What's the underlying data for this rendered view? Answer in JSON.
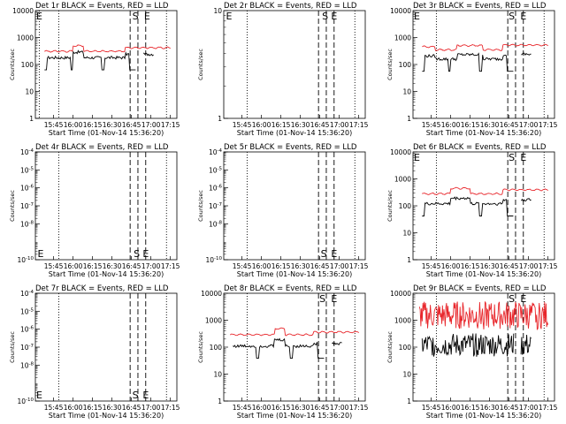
{
  "chart_data": [
    {
      "type": "line",
      "title": "Det 1r BLACK = Events, RED = LLD",
      "ylabel": "Counts/sec",
      "xlabel": "Start Time (01-Nov-14 15:36:20)",
      "x_tick_labels": [
        "15:45",
        "16:00",
        "16:15",
        "16:30",
        "16:45",
        "17:00",
        "17:15"
      ],
      "yscale": "log",
      "ylim": [
        1,
        10000
      ],
      "y_tick_labels": [
        "1",
        "10",
        "100",
        "1000",
        "10000"
      ],
      "markers": [
        {
          "label": "E",
          "time": "15:31"
        },
        {
          "label": "S",
          "time": "16:45"
        },
        {
          "label": "E",
          "time": "16:54"
        }
      ],
      "dotted_lines": [
        "15:34",
        "15:49",
        "17:12"
      ],
      "dashed_lines": [
        "16:44",
        "16:50",
        "16:56"
      ],
      "series": [
        {
          "name": "Events",
          "color": "#000000",
          "style": "seg",
          "t0": "15:38",
          "t1": "17:02",
          "n": 110,
          "base": 180,
          "shape": "one",
          "amp": 40,
          "dips": [
            [
              "15:38",
              "15:40"
            ],
            [
              "15:58",
              "16:00"
            ],
            [
              "16:22",
              "16:24"
            ],
            [
              "16:43",
              "16:51"
            ]
          ],
          "gaps": [
            [
              "16:49",
              "16:54"
            ]
          ]
        },
        {
          "name": "LLD",
          "color": "#e8262b",
          "style": "smooth",
          "t0": "15:38",
          "t1": "17:15",
          "n": 140,
          "base": 310,
          "shape": "one"
        }
      ]
    },
    {
      "type": "line",
      "title": "Det 2r BLACK = Events, RED = LLD",
      "ylabel": "Counts/sec",
      "xlabel": "Start Time (01-Nov-14 15:36:20)",
      "x_tick_labels": [
        "15:45",
        "16:00",
        "16:15",
        "16:30",
        "16:45",
        "17:00",
        "17:15"
      ],
      "yscale": "log",
      "ylim": [
        1,
        10
      ],
      "y_tick_labels": [
        "1",
        "10"
      ],
      "markers": [
        {
          "label": "E",
          "time": "15:32",
          "pos": "top"
        },
        {
          "label": "S",
          "time": "16:46",
          "pos": "top"
        },
        {
          "label": "E",
          "time": "16:53",
          "pos": "top"
        }
      ],
      "dotted_lines": [
        "15:49",
        "17:12"
      ],
      "dashed_lines": [
        "16:44",
        "16:50",
        "16:56"
      ],
      "series": []
    },
    {
      "type": "line",
      "title": "Det 3r BLACK = Events, RED = LLD",
      "ylabel": "Counts/sec",
      "xlabel": "Start Time (01-Nov-14 15:36:20)",
      "x_tick_labels": [
        "15:45",
        "16:00",
        "16:15",
        "16:30",
        "16:45",
        "17:00",
        "17:15"
      ],
      "yscale": "log",
      "ylim": [
        1,
        10000
      ],
      "y_tick_labels": [
        "1",
        "10",
        "100",
        "1000",
        "10000"
      ],
      "markers": [
        {
          "label": "E",
          "time": "15:31",
          "pos": "top"
        },
        {
          "label": "S",
          "time": "16:44",
          "pos": "top"
        },
        {
          "label": "E",
          "time": "16:53",
          "pos": "top"
        }
      ],
      "dotted_lines": [
        "15:49",
        "17:12"
      ],
      "dashed_lines": [
        "16:44",
        "16:50",
        "16:56"
      ],
      "series": [
        {
          "name": "Events",
          "color": "#000000",
          "style": "seg",
          "t0": "15:38",
          "t1": "17:02",
          "n": 110,
          "base": 160,
          "shape": "three",
          "amp": 40,
          "dips": [
            [
              "15:38",
              "15:40"
            ],
            [
              "15:58",
              "16:00"
            ],
            [
              "16:22",
              "16:24"
            ],
            [
              "16:43",
              "16:51"
            ]
          ],
          "gaps": [
            [
              "16:49",
              "16:54"
            ]
          ]
        },
        {
          "name": "LLD",
          "color": "#e8262b",
          "style": "smooth",
          "t0": "15:38",
          "t1": "17:15",
          "n": 140,
          "base": 350,
          "shape": "three"
        }
      ]
    },
    {
      "type": "line",
      "title": "Det 4r BLACK = Events, RED = LLD",
      "ylabel": "Counts/sec",
      "xlabel": "Start Time (01-Nov-14 15:36:20)",
      "x_tick_labels": [
        "15:45",
        "16:00",
        "16:15",
        "16:30",
        "16:45",
        "17:00",
        "17:15"
      ],
      "yscale": "log",
      "ylim": [
        1e-10,
        0.0001
      ],
      "y_tick_labels": [
        "10^-10",
        "10^-8",
        "10^-7",
        "10^-6",
        "10^-5",
        "10^-4"
      ],
      "markers": [
        {
          "label": "E",
          "time": "15:32",
          "pos": "bottom"
        },
        {
          "label": "S",
          "time": "16:46",
          "pos": "bottom"
        },
        {
          "label": "E",
          "time": "16:53",
          "pos": "bottom"
        }
      ],
      "dotted_lines": [
        "15:49",
        "17:12"
      ],
      "dashed_lines": [
        "16:44",
        "16:50",
        "16:56"
      ],
      "series": []
    },
    {
      "type": "line",
      "title": "Det 5r BLACK = Events, RED = LLD",
      "ylabel": "Counts/sec",
      "xlabel": "Start Time (01-Nov-14 15:36:20)",
      "x_tick_labels": [
        "15:45",
        "16:00",
        "16:15",
        "16:30",
        "16:45",
        "17:00",
        "17:15"
      ],
      "yscale": "log",
      "ylim": [
        1e-10,
        0.0001
      ],
      "y_tick_labels": [
        "10^-10",
        "10^-8",
        "10^-7",
        "10^-6",
        "10^-5",
        "10^-4"
      ],
      "markers": [
        {
          "label": "S",
          "time": "16:45",
          "pos": "bottom"
        },
        {
          "label": "E",
          "time": "16:53",
          "pos": "bottom"
        }
      ],
      "dotted_lines": [
        "15:49",
        "17:12"
      ],
      "dashed_lines": [
        "16:44",
        "16:50",
        "16:56"
      ],
      "series": []
    },
    {
      "type": "line",
      "title": "Det 6r BLACK = Events, RED = LLD",
      "ylabel": "Counts/sec",
      "xlabel": "Start Time (01-Nov-14 15:36:20)",
      "x_tick_labels": [
        "15:45",
        "16:00",
        "16:15",
        "16:30",
        "16:45",
        "17:00",
        "17:15"
      ],
      "yscale": "log",
      "ylim": [
        1,
        10000
      ],
      "y_tick_labels": [
        "1",
        "10",
        "100",
        "1000",
        "10000"
      ],
      "markers": [
        {
          "label": "E",
          "time": "15:31",
          "pos": "top"
        },
        {
          "label": "S",
          "time": "16:44",
          "pos": "top"
        },
        {
          "label": "E",
          "time": "16:53",
          "pos": "top"
        }
      ],
      "dotted_lines": [
        "15:49",
        "17:12"
      ],
      "dashed_lines": [
        "16:44",
        "16:50",
        "16:56"
      ],
      "series": [
        {
          "name": "Events",
          "color": "#000000",
          "style": "seg",
          "t0": "15:38",
          "t1": "17:02",
          "n": 110,
          "base": 120,
          "shape": "six",
          "amp": 40,
          "dips": [
            [
              "15:38",
              "15:40"
            ],
            [
              "16:22",
              "16:24"
            ],
            [
              "16:43",
              "16:51"
            ]
          ],
          "gaps": [
            [
              "16:49",
              "16:54"
            ]
          ]
        },
        {
          "name": "LLD",
          "color": "#e8262b",
          "style": "smooth",
          "t0": "15:38",
          "t1": "17:15",
          "n": 140,
          "base": 280,
          "shape": "six"
        }
      ]
    },
    {
      "type": "line",
      "title": "Det 7r BLACK = Events, RED = LLD",
      "ylabel": "Counts/sec",
      "xlabel": "Start Time (01-Nov-14 15:36:20)",
      "x_tick_labels": [
        "15:45",
        "16:00",
        "16:15",
        "16:30",
        "16:45",
        "17:00",
        "17:15"
      ],
      "yscale": "log",
      "ylim": [
        1e-10,
        0.0001
      ],
      "y_tick_labels": [
        "10^-10",
        "10^-8",
        "10^-7",
        "10^-6",
        "10^-5",
        "10^-4"
      ],
      "markers": [
        {
          "label": "E",
          "time": "15:31",
          "pos": "bottom"
        },
        {
          "label": "S",
          "time": "16:45",
          "pos": "bottom"
        },
        {
          "label": "E",
          "time": "16:53",
          "pos": "bottom"
        }
      ],
      "dotted_lines": [
        "15:49",
        "17:12"
      ],
      "dashed_lines": [
        "16:44",
        "16:50",
        "16:56"
      ],
      "series": []
    },
    {
      "type": "line",
      "title": "Det 8r BLACK = Events, RED = LLD",
      "ylabel": "Counts/sec",
      "xlabel": "Start Time (01-Nov-14 15:36:20)",
      "x_tick_labels": [
        "15:45",
        "16:00",
        "16:15",
        "16:30",
        "16:45",
        "17:00",
        "17:15"
      ],
      "yscale": "log",
      "ylim": [
        1,
        10000
      ],
      "y_tick_labels": [
        "1",
        "10",
        "100",
        "1000",
        "10000"
      ],
      "markers": [
        {
          "label": "S",
          "time": "16:44",
          "pos": "top"
        },
        {
          "label": "E",
          "time": "16:53",
          "pos": "top"
        }
      ],
      "dotted_lines": [
        "15:49",
        "17:12"
      ],
      "dashed_lines": [
        "16:44",
        "16:50",
        "16:56"
      ],
      "series": [
        {
          "name": "Events",
          "color": "#000000",
          "style": "seg",
          "t0": "15:38",
          "t1": "17:02",
          "n": 110,
          "base": 110,
          "shape": "eight",
          "amp": 40,
          "dips": [
            [
              "15:56",
              "15:58"
            ],
            [
              "16:22",
              "16:24"
            ],
            [
              "16:43",
              "16:51"
            ]
          ],
          "gaps": [
            [
              "16:49",
              "16:54"
            ]
          ]
        },
        {
          "name": "LLD",
          "color": "#e8262b",
          "style": "smooth",
          "t0": "15:36",
          "t1": "17:15",
          "n": 140,
          "base": 290,
          "shape": "eight"
        }
      ]
    },
    {
      "type": "line",
      "title": "Det 9r BLACK = Events, RED = LLD",
      "ylabel": "Counts/sec",
      "xlabel": "Start Time (01-Nov-14 15:36:20)",
      "x_tick_labels": [
        "15:45",
        "16:00",
        "16:15",
        "16:30",
        "16:45",
        "17:00",
        "17:15"
      ],
      "yscale": "log",
      "ylim": [
        1,
        10000
      ],
      "y_tick_labels": [
        "1",
        "10",
        "100",
        "1000",
        "10000"
      ],
      "markers": [
        {
          "label": "S",
          "time": "16:44",
          "pos": "top"
        },
        {
          "label": "E",
          "time": "16:53",
          "pos": "top"
        }
      ],
      "dotted_lines": [
        "15:49",
        "17:12"
      ],
      "dashed_lines": [
        "16:44",
        "16:50",
        "16:56"
      ],
      "series": [
        {
          "name": "Events",
          "color": "#000000",
          "style": "noisy",
          "t0": "15:38",
          "t1": "17:02",
          "n": 150,
          "base": 120,
          "shape": "nine",
          "amp": 180,
          "gaps": [
            [
              "16:49",
              "16:54"
            ]
          ]
        },
        {
          "name": "LLD",
          "color": "#e8262b",
          "style": "noisy",
          "t0": "15:36",
          "t1": "17:15",
          "n": 190,
          "base": 1500,
          "shape": "nine",
          "amp": 2.4
        }
      ]
    }
  ]
}
